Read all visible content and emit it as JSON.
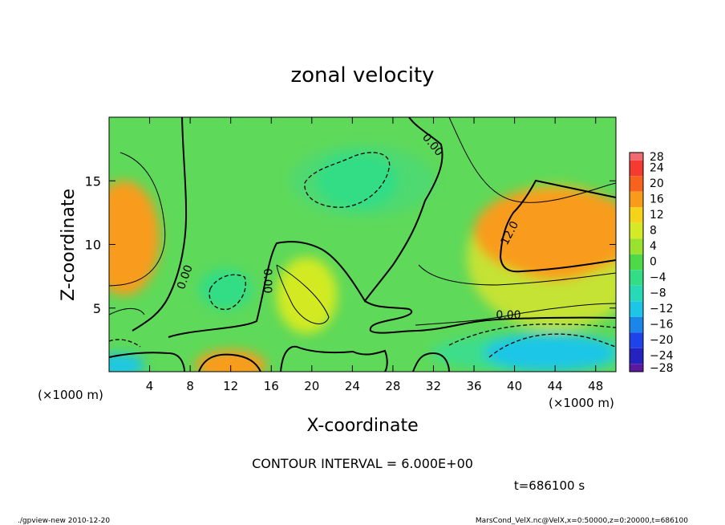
{
  "chart_data": {
    "type": "heatmap",
    "title": "zonal velocity",
    "xlabel": "X-coordinate",
    "ylabel": "Z-coordinate",
    "x_unit_label": "(×1000 m)",
    "z_unit_label": "(×1000 m)",
    "xlim": [
      0,
      50
    ],
    "ylim": [
      0,
      20
    ],
    "x_ticks": [
      "4",
      "8",
      "12",
      "16",
      "20",
      "24",
      "28",
      "32",
      "36",
      "40",
      "44",
      "48"
    ],
    "y_ticks": [
      "5",
      "10",
      "15"
    ],
    "colorbar": {
      "labels": [
        "28",
        "24",
        "20",
        "16",
        "12",
        "8",
        "4",
        "0",
        "−4",
        "−8",
        "−12",
        "−16",
        "−20",
        "−24",
        "−28"
      ],
      "levels": [
        28,
        24,
        20,
        16,
        12,
        8,
        4,
        0,
        -4,
        -8,
        -12,
        -16,
        -20,
        -24,
        -28
      ]
    },
    "contour_labels": [
      "0.00",
      "0.00",
      "0.00",
      "12.0",
      "0.00"
    ],
    "contour_interval": 6.0,
    "features": [
      {
        "x": 1.5,
        "z": 10.5,
        "value": 14
      },
      {
        "x": 12,
        "z": 0.5,
        "value": 16
      },
      {
        "x": 19.5,
        "z": 6,
        "value": 8
      },
      {
        "x": 11.5,
        "z": 6.5,
        "value": -6
      },
      {
        "x": 24.5,
        "z": 15,
        "value": -6
      },
      {
        "x": 44,
        "z": 11,
        "value": 14
      },
      {
        "x": 44,
        "z": 9,
        "value": 17
      },
      {
        "x": 43.5,
        "z": 1.5,
        "value": -14
      },
      {
        "x": 1,
        "z": 0.5,
        "value": -14
      }
    ]
  },
  "annotations": {
    "contour_interval_text": "CONTOUR INTERVAL = 6.000E+00",
    "time_text": "t=686100 s",
    "footer_left": "./gpview-new   2010-12-20",
    "footer_right": "MarsCond_VelX.nc@VelX,x=0:50000,z=0:20000,t=686100"
  }
}
